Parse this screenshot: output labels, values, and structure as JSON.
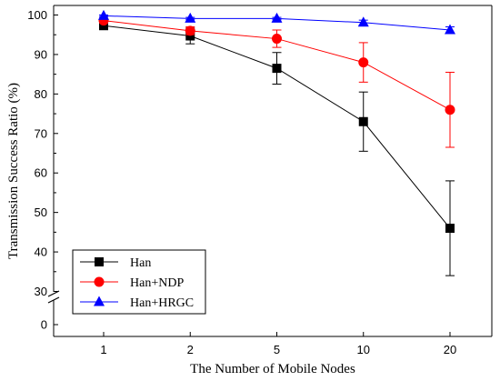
{
  "chart_data": {
    "type": "line",
    "title": "",
    "xlabel": "The Number of Mobile Nodes",
    "ylabel": "Transmission Success Ratio (%)",
    "categories": [
      "1",
      "2",
      "5",
      "10",
      "20"
    ],
    "yticks": [
      0,
      30,
      40,
      50,
      60,
      70,
      80,
      90,
      100
    ],
    "y_axis_break": {
      "from": 0,
      "to": 30
    },
    "ylim": [
      0,
      100
    ],
    "grid": false,
    "legend_position": "bottom-left",
    "error_bars": true,
    "series": [
      {
        "name": "Han",
        "color": "#000000",
        "marker": "square",
        "values": [
          97.3,
          94.7,
          86.5,
          73,
          46
        ],
        "errors": [
          0.8,
          2,
          4,
          7.5,
          12
        ]
      },
      {
        "name": "Han+NDP",
        "color": "#ff0000",
        "marker": "circle",
        "values": [
          98.6,
          96,
          94,
          88,
          76
        ],
        "errors": [
          0.6,
          1,
          2.2,
          5,
          9.5
        ]
      },
      {
        "name": "Han+HRGC",
        "color": "#0000ff",
        "marker": "triangle",
        "values": [
          99.8,
          99.1,
          99.1,
          98.1,
          96.2
        ],
        "errors": [
          0.2,
          0.3,
          0.3,
          0.6,
          0.8
        ]
      }
    ]
  }
}
